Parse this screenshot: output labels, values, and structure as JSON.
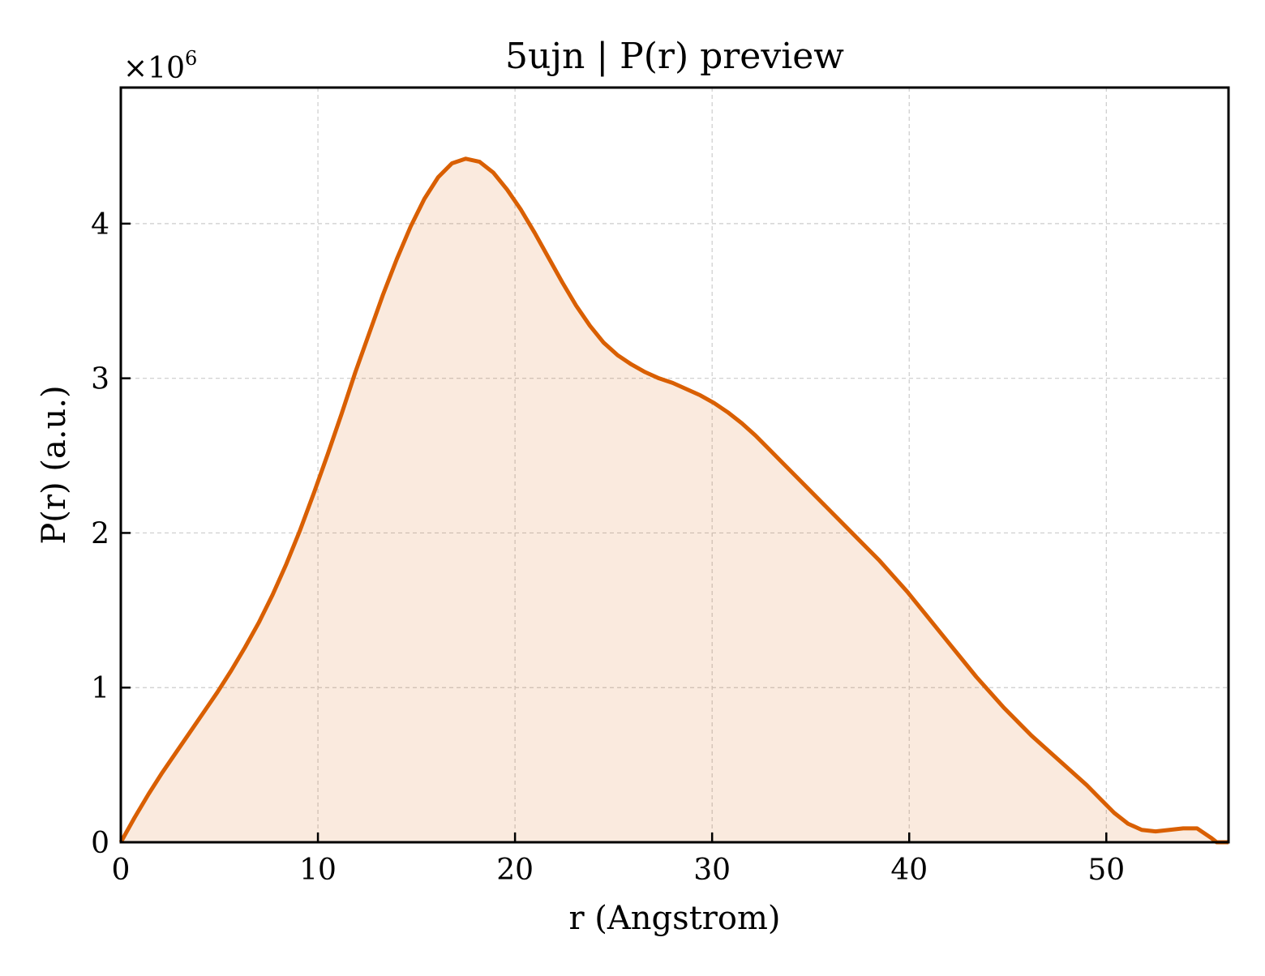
{
  "chart_data": {
    "type": "area",
    "title": "5ujn | P(r) preview",
    "xlabel": "r (Angstrom)",
    "ylabel": "P(r) (a.u.)",
    "y_multiplier_label": "×10",
    "y_multiplier_exponent": "6",
    "xlim": [
      0,
      56.2
    ],
    "ylim": [
      0,
      4.88
    ],
    "x_ticks": [
      0,
      10,
      20,
      30,
      40,
      50
    ],
    "y_ticks": [
      0,
      1,
      2,
      3,
      4
    ],
    "grid": true,
    "line_color": "#d95f02",
    "fill_color": "#d95f02",
    "fill_opacity": 0.13,
    "series": [
      {
        "x": [
          0,
          0.7,
          1.4,
          2.1,
          2.8,
          3.5,
          4.2,
          4.9,
          5.6,
          6.3,
          7.0,
          7.7,
          8.4,
          9.1,
          9.8,
          10.5,
          11.2,
          11.9,
          12.6,
          13.3,
          14.0,
          14.7,
          15.4,
          16.1,
          16.8,
          17.5,
          18.2,
          18.9,
          19.6,
          20.3,
          21.0,
          21.7,
          22.4,
          23.1,
          23.8,
          24.5,
          25.2,
          25.9,
          26.6,
          27.3,
          28.0,
          28.7,
          29.4,
          30.1,
          30.8,
          31.5,
          32.2,
          32.9,
          33.6,
          34.3,
          35.0,
          35.7,
          36.4,
          37.1,
          37.8,
          38.5,
          39.2,
          39.9,
          40.6,
          41.3,
          42.0,
          42.7,
          43.4,
          44.1,
          44.8,
          45.5,
          46.2,
          46.9,
          47.6,
          48.3,
          49.0,
          49.7,
          50.4,
          51.1,
          51.8,
          52.5,
          53.2,
          53.9,
          54.6,
          55.3,
          55.6,
          56.2
        ],
        "y": [
          0,
          0.16,
          0.31,
          0.45,
          0.58,
          0.71,
          0.84,
          0.97,
          1.11,
          1.26,
          1.42,
          1.6,
          1.8,
          2.02,
          2.26,
          2.51,
          2.77,
          3.04,
          3.29,
          3.54,
          3.77,
          3.98,
          4.16,
          4.3,
          4.39,
          4.42,
          4.4,
          4.33,
          4.22,
          4.09,
          3.94,
          3.78,
          3.62,
          3.47,
          3.34,
          3.23,
          3.15,
          3.09,
          3.04,
          3.0,
          2.97,
          2.93,
          2.89,
          2.84,
          2.78,
          2.71,
          2.63,
          2.54,
          2.45,
          2.36,
          2.27,
          2.18,
          2.09,
          2.0,
          1.91,
          1.82,
          1.72,
          1.62,
          1.51,
          1.4,
          1.29,
          1.18,
          1.07,
          0.97,
          0.87,
          0.78,
          0.69,
          0.61,
          0.53,
          0.45,
          0.37,
          0.28,
          0.19,
          0.12,
          0.08,
          0.07,
          0.08,
          0.09,
          0.09,
          0.03,
          0.0,
          0.0
        ]
      }
    ]
  }
}
